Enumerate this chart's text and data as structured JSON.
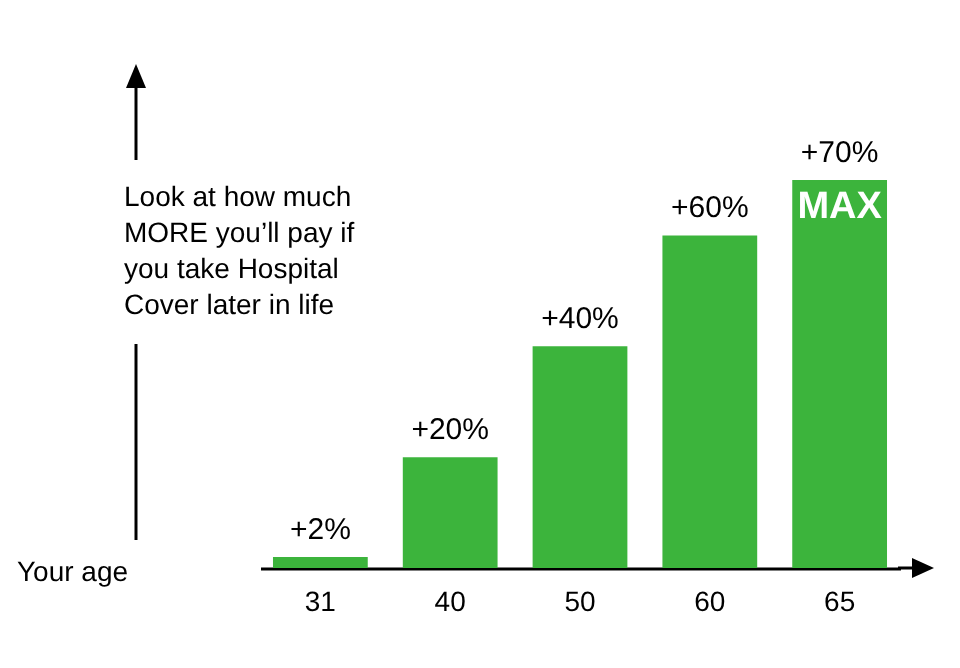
{
  "chart_data": {
    "type": "bar",
    "xlabel": "Your age",
    "categories": [
      "31",
      "40",
      "50",
      "60",
      "65"
    ],
    "values": [
      2,
      20,
      40,
      60,
      70
    ],
    "value_labels": [
      "+2%",
      "+20%",
      "+40%",
      "+60%",
      "+70%"
    ],
    "color": "#3cb43c",
    "annotations": [
      "Look at how much MORE you’ll pay if you take Hospital Cover later in life",
      {
        "text": "MAX",
        "x": "65",
        "y": 70
      }
    ]
  }
}
